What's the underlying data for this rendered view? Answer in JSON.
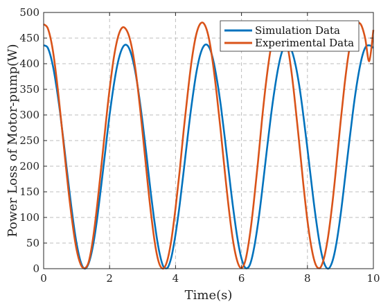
{
  "chart_data": {
    "type": "line",
    "title": "",
    "xlabel": "Time(s)",
    "ylabel": "Power Loss of Motor-pump(W)",
    "xlim": [
      0,
      10
    ],
    "ylim": [
      0,
      500
    ],
    "xticks": [
      0,
      2,
      4,
      6,
      8,
      10
    ],
    "yticks": [
      0,
      50,
      100,
      150,
      200,
      250,
      300,
      350,
      400,
      450,
      500
    ],
    "grid": true,
    "grid_style": "dashed",
    "legend_position": "top-right",
    "series": [
      {
        "name": "Simulation Data",
        "color": "#0072BD",
        "x": [
          0,
          0.125,
          0.25,
          0.375,
          0.5,
          0.625,
          0.75,
          0.875,
          1.0,
          1.125,
          1.25,
          1.375,
          1.5,
          1.625,
          1.75,
          1.875,
          2.0,
          2.125,
          2.25,
          2.375,
          2.5,
          2.625,
          2.75,
          2.875,
          3.0,
          3.125,
          3.25,
          3.375,
          3.5,
          3.625,
          3.75,
          3.875,
          4.0,
          4.125,
          4.25,
          4.375,
          4.5,
          4.625,
          4.75,
          4.875,
          5.0,
          5.125,
          5.25,
          5.375,
          5.5,
          5.625,
          5.75,
          5.875,
          6.0,
          6.125,
          6.25,
          6.375,
          6.5,
          6.625,
          6.75,
          6.875,
          7.0,
          7.125,
          7.25,
          7.375,
          7.5,
          7.625,
          7.75,
          7.875,
          8.0,
          8.125,
          8.25,
          8.375,
          8.5,
          8.625,
          8.75,
          8.875,
          9.0,
          9.125,
          9.25,
          9.375,
          9.5,
          9.625,
          9.75,
          9.875,
          10.0
        ],
        "y": [
          436,
          431,
          405,
          361,
          304,
          237,
          168,
          103,
          49,
          13,
          0,
          12,
          46,
          99,
          164,
          233,
          300,
          357,
          402,
          429,
          437,
          425,
          394,
          346,
          286,
          218,
          148,
          85,
          35,
          5,
          1,
          23,
          67,
          125,
          192,
          262,
          326,
          380,
          418,
          436,
          434,
          412,
          371,
          317,
          252,
          183,
          117,
          60,
          20,
          1,
          7,
          38,
          88,
          151,
          221,
          289,
          348,
          396,
          427,
          437,
          429,
          402,
          358,
          300,
          234,
          165,
          101,
          47,
          12,
          0,
          13,
          48,
          102,
          168,
          237,
          304,
          361,
          405,
          431,
          436,
          431
        ]
      },
      {
        "name": "Experimental Data",
        "color": "#D95319",
        "x": [
          0,
          0.125,
          0.25,
          0.375,
          0.5,
          0.625,
          0.75,
          0.875,
          1.0,
          1.125,
          1.25,
          1.375,
          1.5,
          1.625,
          1.75,
          1.875,
          2.0,
          2.125,
          2.25,
          2.375,
          2.5,
          2.625,
          2.75,
          2.875,
          3.0,
          3.125,
          3.25,
          3.375,
          3.5,
          3.625,
          3.75,
          3.875,
          4.0,
          4.125,
          4.25,
          4.375,
          4.5,
          4.625,
          4.75,
          4.875,
          5.0,
          5.125,
          5.25,
          5.375,
          5.5,
          5.625,
          5.75,
          5.875,
          6.0,
          6.125,
          6.25,
          6.375,
          6.5,
          6.625,
          6.75,
          6.875,
          7.0,
          7.125,
          7.25,
          7.375,
          7.5,
          7.625,
          7.75,
          7.875,
          8.0,
          8.125,
          8.25,
          8.375,
          8.5,
          8.625,
          8.75,
          8.875,
          9.0,
          9.125,
          9.25,
          9.375,
          9.5,
          9.625,
          9.75,
          9.875,
          10.0
        ],
        "y": [
          477,
          469,
          437,
          381,
          308,
          230,
          154,
          88,
          37,
          8,
          1,
          15,
          60,
          125,
          200,
          278,
          350,
          410,
          451,
          470,
          467,
          446,
          404,
          342,
          266,
          186,
          111,
          49,
          11,
          0,
          16,
          57,
          118,
          191,
          272,
          346,
          411,
          456,
          478,
          477,
          453,
          405,
          340,
          265,
          186,
          112,
          52,
          14,
          1,
          18,
          64,
          130,
          208,
          292,
          366,
          425,
          463,
          478,
          473,
          443,
          392,
          324,
          246,
          166,
          94,
          40,
          8,
          1,
          20,
          62,
          124,
          200,
          283,
          358,
          420,
          461,
          478,
          476,
          450,
          405,
          466
        ]
      }
    ]
  }
}
